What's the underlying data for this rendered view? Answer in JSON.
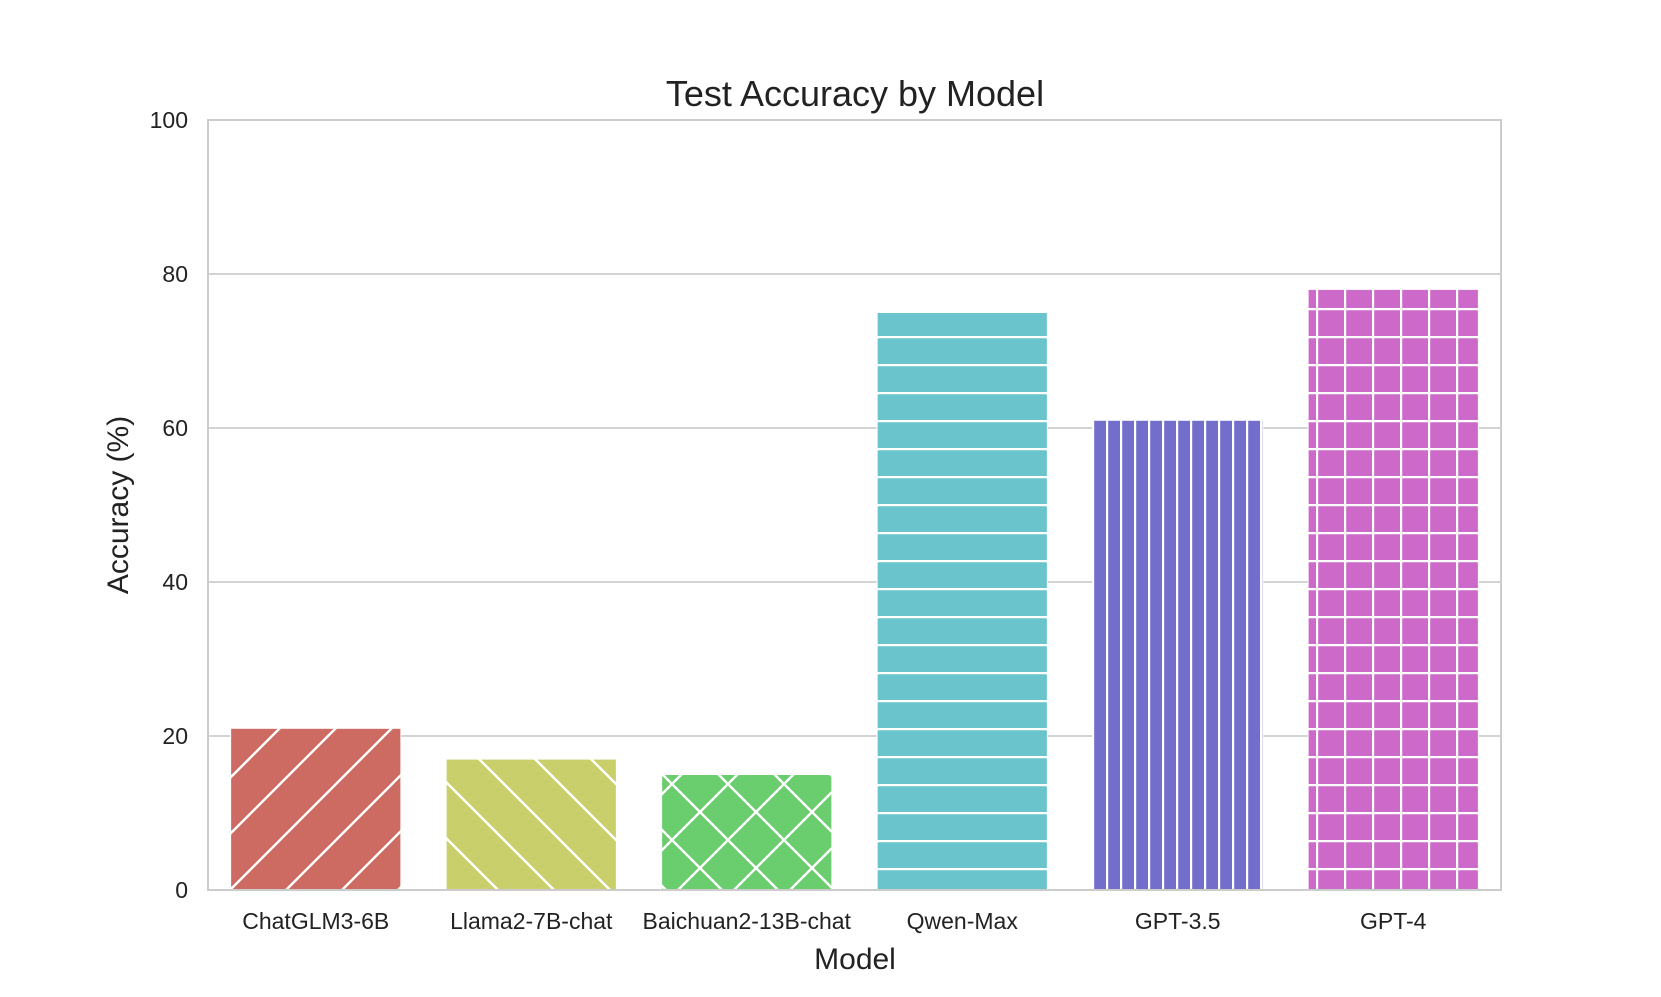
{
  "chart_data": {
    "type": "bar",
    "title": "Test Accuracy by Model",
    "xlabel": "Model",
    "ylabel": "Accuracy (%)",
    "ylim": [
      0,
      100
    ],
    "yticks": [
      "0",
      "20",
      "40",
      "60",
      "80",
      "100"
    ],
    "grid": true,
    "categories": [
      "ChatGLM3-6B",
      "Llama2-7B-chat",
      "Baichuan2-13B-chat",
      "Qwen-Max",
      "GPT-3.5",
      "GPT-4"
    ],
    "values": [
      21,
      17,
      15,
      75,
      61,
      78
    ],
    "colors": [
      "#cd6b63",
      "#c9cf6a",
      "#6acd6e",
      "#69c4cb",
      "#736dcc",
      "#cc69c9"
    ],
    "hatches": [
      "forward-diagonal",
      "back-diagonal",
      "cross-diagonal",
      "horizontal",
      "vertical",
      "grid"
    ]
  }
}
